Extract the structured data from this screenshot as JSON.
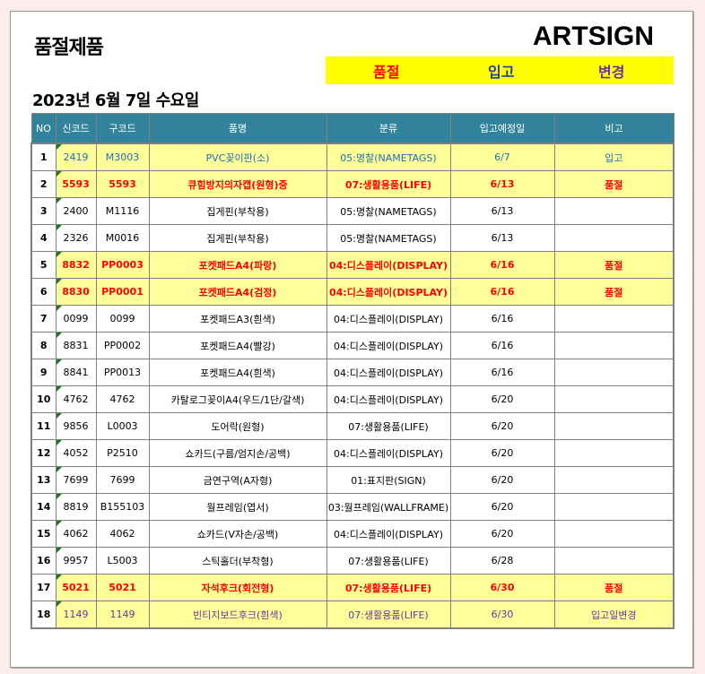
{
  "title": "품절제품",
  "logo": "ARTSIGN",
  "legend": {
    "soldout": "품절",
    "stock_in": "입고",
    "changed": "변경"
  },
  "colors": {
    "header_bg": "#31849b",
    "highlight_bg": "#ffff99",
    "legend_bg": "#ffff00",
    "soldout": "#ff0000",
    "stock_in": "#1f5fa8",
    "changed": "#7030a0"
  },
  "date": "2023년 6월 7일 수요일",
  "columns": [
    "NO",
    "신코드",
    "구코드",
    "품명",
    "분류",
    "입고예정일",
    "비고"
  ],
  "rows": [
    {
      "no": "1",
      "new": "2419",
      "old": "M3003",
      "name": "PVC꽂이판(소)",
      "cat": "05:명찰(NAMETAGS)",
      "date": "6/7",
      "note": "입고",
      "status": "stock_in"
    },
    {
      "no": "2",
      "new": "5593",
      "old": "5593",
      "name": "큐힘방지의자캡(원형)중",
      "cat": "07:생활용품(LIFE)",
      "date": "6/13",
      "note": "품절",
      "status": "soldout"
    },
    {
      "no": "3",
      "new": "2400",
      "old": "M1116",
      "name": "집게핀(부착용)",
      "cat": "05:명찰(NAMETAGS)",
      "date": "6/13",
      "note": "",
      "status": ""
    },
    {
      "no": "4",
      "new": "2326",
      "old": "M0016",
      "name": "집게핀(부착용)",
      "cat": "05:명찰(NAMETAGS)",
      "date": "6/13",
      "note": "",
      "status": ""
    },
    {
      "no": "5",
      "new": "8832",
      "old": "PP0003",
      "name": "포켓패드A4(파랑)",
      "cat": "04:디스플레이(DISPLAY)",
      "date": "6/16",
      "note": "품절",
      "status": "soldout"
    },
    {
      "no": "6",
      "new": "8830",
      "old": "PP0001",
      "name": "포켓패드A4(검정)",
      "cat": "04:디스플레이(DISPLAY)",
      "date": "6/16",
      "note": "품절",
      "status": "soldout"
    },
    {
      "no": "7",
      "new": "0099",
      "old": "0099",
      "name": "포켓패드A3(흰색)",
      "cat": "04:디스플레이(DISPLAY)",
      "date": "6/16",
      "note": "",
      "status": ""
    },
    {
      "no": "8",
      "new": "8831",
      "old": "PP0002",
      "name": "포켓패드A4(빨강)",
      "cat": "04:디스플레이(DISPLAY)",
      "date": "6/16",
      "note": "",
      "status": ""
    },
    {
      "no": "9",
      "new": "8841",
      "old": "PP0013",
      "name": "포켓패드A4(흰색)",
      "cat": "04:디스플레이(DISPLAY)",
      "date": "6/16",
      "note": "",
      "status": ""
    },
    {
      "no": "10",
      "new": "4762",
      "old": "4762",
      "name": "카탈로그꽂이A4(우드/1단/갈색)",
      "cat": "04:디스플레이(DISPLAY)",
      "date": "6/20",
      "note": "",
      "status": ""
    },
    {
      "no": "11",
      "new": "9856",
      "old": "L0003",
      "name": "도어락(원형)",
      "cat": "07:생활용품(LIFE)",
      "date": "6/20",
      "note": "",
      "status": ""
    },
    {
      "no": "12",
      "new": "4052",
      "old": "P2510",
      "name": "쇼카드(구름/엄지손/공백)",
      "cat": "04:디스플레이(DISPLAY)",
      "date": "6/20",
      "note": "",
      "status": ""
    },
    {
      "no": "13",
      "new": "7699",
      "old": "7699",
      "name": "금연구역(A자형)",
      "cat": "01:표지판(SIGN)",
      "date": "6/20",
      "note": "",
      "status": ""
    },
    {
      "no": "14",
      "new": "8819",
      "old": "B155103",
      "name": "월프레임(엽서)",
      "cat": "03:월프레임(WALLFRAME)",
      "date": "6/20",
      "note": "",
      "status": ""
    },
    {
      "no": "15",
      "new": "4062",
      "old": "4062",
      "name": "쇼카드(V자손/공백)",
      "cat": "04:디스플레이(DISPLAY)",
      "date": "6/20",
      "note": "",
      "status": ""
    },
    {
      "no": "16",
      "new": "9957",
      "old": "L5003",
      "name": "스틱홀더(부착형)",
      "cat": "07:생활용품(LIFE)",
      "date": "6/28",
      "note": "",
      "status": ""
    },
    {
      "no": "17",
      "new": "5021",
      "old": "5021",
      "name": "자석후크(회전형)",
      "cat": "07:생활용품(LIFE)",
      "date": "6/30",
      "note": "품절",
      "status": "soldout"
    },
    {
      "no": "18",
      "new": "1149",
      "old": "1149",
      "name": "빈티지보드후크(흰색)",
      "cat": "07:생활용품(LIFE)",
      "date": "6/30",
      "note": "입고일변경",
      "status": "changed"
    }
  ]
}
